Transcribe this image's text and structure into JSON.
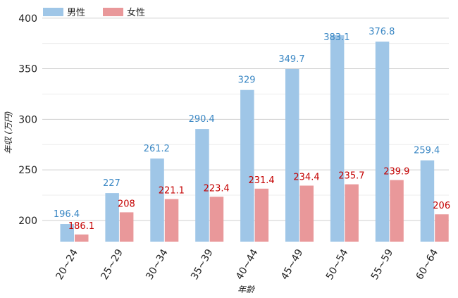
{
  "chart_data": {
    "type": "bar",
    "categories": [
      "20~24",
      "25~29",
      "30~34",
      "35~39",
      "40~44",
      "45~49",
      "50~54",
      "55~59",
      "60~64"
    ],
    "series": [
      {
        "name": "男性",
        "values": [
          196.4,
          227,
          261.2,
          290.4,
          329,
          349.7,
          383.1,
          376.8,
          259.4
        ],
        "color": "#9fc6e7",
        "label_color": "#3a87c4"
      },
      {
        "name": "女性",
        "values": [
          186.1,
          208,
          221.1,
          223.4,
          231.4,
          234.4,
          235.7,
          239.9,
          206
        ],
        "color": "#e9989a",
        "label_color": "#c40000"
      }
    ],
    "value_labels": {
      "男性": [
        "196.4",
        "227",
        "261.2",
        "290.4",
        "329",
        "349.7",
        "383.1",
        "376.8",
        "259.4"
      ],
      "女性": [
        "186.1",
        "208",
        "221.1",
        "223.4",
        "231.4",
        "234.4",
        "235.7",
        "239.9",
        "206"
      ]
    },
    "xlabel": "年齢",
    "ylabel": "年収 (万円)",
    "ylim": [
      179,
      411
    ],
    "yticks": [
      200,
      250,
      300,
      350,
      400
    ],
    "minor_yticks": [
      225,
      275,
      325,
      375
    ],
    "grid": true,
    "legend_position": "top-left"
  }
}
